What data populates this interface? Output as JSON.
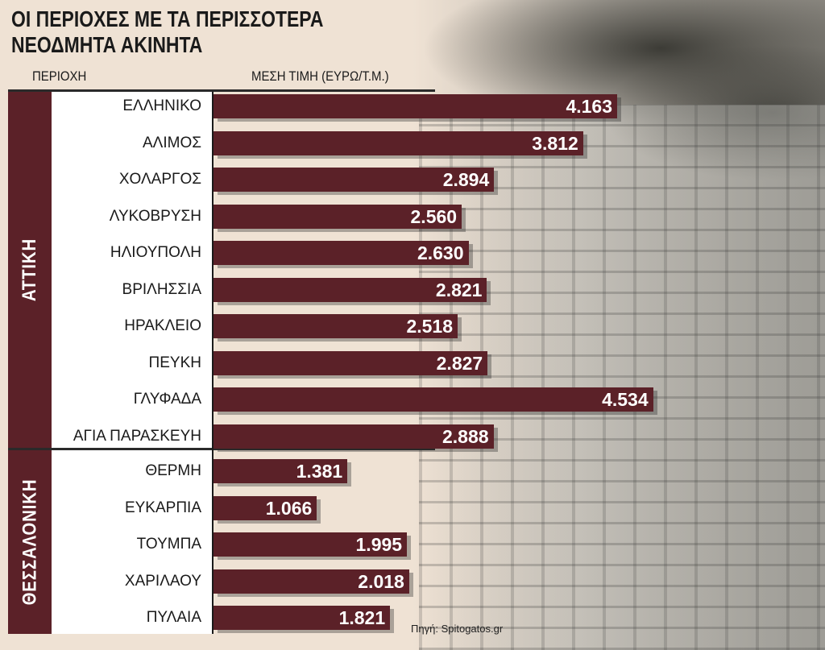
{
  "chart_data": {
    "type": "bar",
    "orientation": "horizontal",
    "title": "ΟΙ ΠΕΡΙΟΧΕΣ ΜΕ ΤΑ ΠΕΡΙΣΣΟΤΕΡΑ ΝΕΟΔΜΗΤΑ ΑΚΙΝΗΤΑ",
    "title_lines": [
      "ΟΙ ΠΕΡΙΟΧΕΣ ΜΕ ΤΑ ΠΕΡΙΣΣΟΤΕΡΑ",
      "ΝΕΟΔΜΗΤΑ ΑΚΙΝΗΤΑ"
    ],
    "category_header": "ΠΕΡΙΟΧΗ",
    "value_header": "ΜΕΣΗ ΤΙΜΗ (ΕΥΡΩ/Τ.Μ.)",
    "xlim": [
      0,
      4700
    ],
    "groups": [
      {
        "name": "ΑΤΤΙΚΗ",
        "categories": [
          "ΕΛΛΗΝΙΚΟ",
          "ΑΛΙΜΟΣ",
          "ΧΟΛΑΡΓΟΣ",
          "ΛΥΚΟΒΡΥΣΗ",
          "ΗΛΙΟΥΠΟΛΗ",
          "ΒΡΙΛΗΣΣΙΑ",
          "ΗΡΑΚΛΕΙΟ",
          "ΠΕΥΚΗ",
          "ΓΛΥΦΑΔΑ",
          "ΑΓΙΑ ΠΑΡΑΣΚΕΥΗ"
        ],
        "values": [
          4163,
          3812,
          2894,
          2560,
          2630,
          2821,
          2518,
          2827,
          4534,
          2888
        ],
        "labels": [
          "4.163",
          "3.812",
          "2.894",
          "2.560",
          "2.630",
          "2.821",
          "2.518",
          "2.827",
          "4.534",
          "2.888"
        ]
      },
      {
        "name": "ΘΕΣΣΑΛΟΝΙΚΗ",
        "categories": [
          "ΘΕΡΜΗ",
          "ΕΥΚΑΡΠΙΑ",
          "ΤΟΥΜΠΑ",
          "ΧΑΡΙΛΑΟΥ",
          "ΠΥΛΑΙΑ"
        ],
        "values": [
          1381,
          1066,
          1995,
          2018,
          1821
        ],
        "labels": [
          "1.381",
          "1.066",
          "1.995",
          "2.018",
          "1.821"
        ]
      }
    ],
    "bar_color": "#5b2128",
    "grid": false,
    "legend": "none",
    "source": "Πηγή: Spitogatos.gr"
  }
}
